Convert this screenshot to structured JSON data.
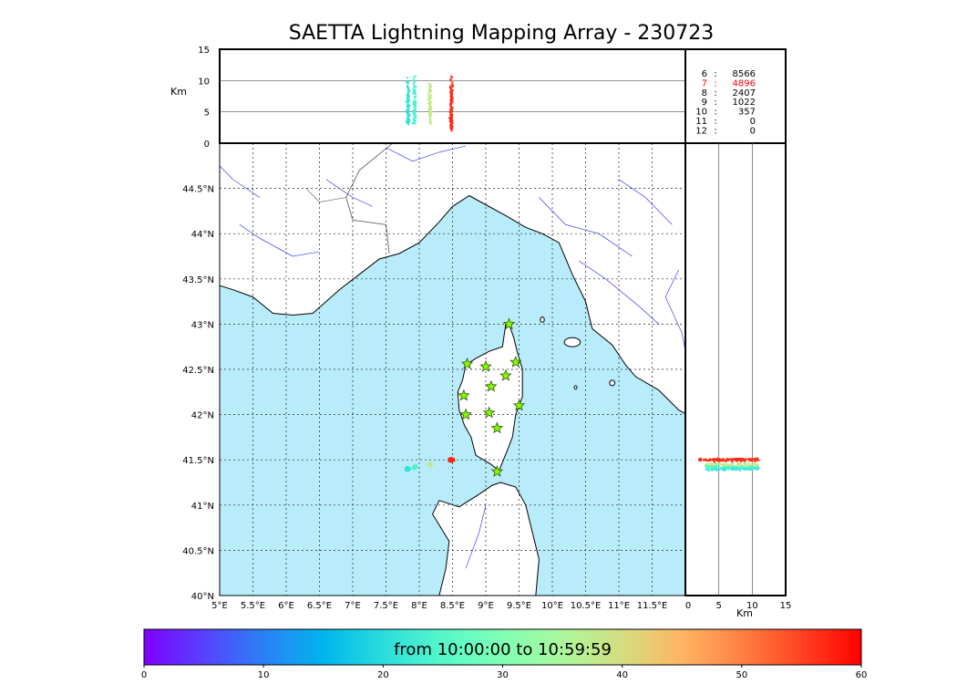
{
  "chart_data": {
    "type": "scatter",
    "title": "SAETTA Lightning Mapping Array - 230723",
    "height_panel": {
      "ylabel": "Km",
      "ylim": [
        0,
        15
      ],
      "yticks": [
        0,
        5,
        10,
        15
      ],
      "grid_lines": [
        5,
        10
      ]
    },
    "map": {
      "lon_range": [
        5,
        12
      ],
      "lat_range": [
        40,
        45
      ],
      "lon_ticks": [
        "5°E",
        "5.5°E",
        "6°E",
        "6.5°E",
        "7°E",
        "7.5°E",
        "8°E",
        "8.5°E",
        "9°E",
        "9.5°E",
        "10°E",
        "10.5°E",
        "11°E",
        "11.5°E"
      ],
      "lat_ticks": [
        "40°N",
        "40.5°N",
        "41°N",
        "41.5°N",
        "42°N",
        "42.5°N",
        "43°N",
        "43.5°N",
        "44°N",
        "44.5°N"
      ],
      "grid": "dotted"
    },
    "side_panel": {
      "xlabel": "Km",
      "xlim": [
        0,
        15
      ],
      "xticks": [
        0,
        5,
        10,
        15
      ],
      "grid_lines": [
        5,
        10
      ]
    },
    "counts_table": [
      {
        "label": "6",
        "sep": ":",
        "value": "8566",
        "color": "#000000"
      },
      {
        "label": "7",
        "sep": ":",
        "value": "4896",
        "color": "#ff0000"
      },
      {
        "label": "8",
        "sep": ":",
        "value": "2407",
        "color": "#000000"
      },
      {
        "label": "9",
        "sep": ":",
        "value": "1022",
        "color": "#000000"
      },
      {
        "label": "10",
        "sep": ":",
        "value": "357",
        "color": "#000000"
      },
      {
        "label": "11",
        "sep": ":",
        "value": "0",
        "color": "#000000"
      },
      {
        "label": "12",
        "sep": ":",
        "value": "0",
        "color": "#000000"
      }
    ],
    "stations": [
      {
        "lon": 9.35,
        "lat": 43.0
      },
      {
        "lon": 8.72,
        "lat": 42.56
      },
      {
        "lon": 9.0,
        "lat": 42.53
      },
      {
        "lon": 9.45,
        "lat": 42.58
      },
      {
        "lon": 9.3,
        "lat": 42.43
      },
      {
        "lon": 9.08,
        "lat": 42.31
      },
      {
        "lon": 8.67,
        "lat": 42.21
      },
      {
        "lon": 9.5,
        "lat": 42.1
      },
      {
        "lon": 8.7,
        "lat": 42.0
      },
      {
        "lon": 9.05,
        "lat": 42.02
      },
      {
        "lon": 9.17,
        "lat": 41.85
      },
      {
        "lon": 9.17,
        "lat": 41.37
      }
    ],
    "clusters": [
      {
        "minute": 21,
        "lon": 7.83,
        "lat": 41.4,
        "alt": [
          3,
          11
        ],
        "n": 35
      },
      {
        "minute": 24,
        "lon": 7.93,
        "lat": 41.42,
        "alt": [
          3,
          11
        ],
        "n": 30
      },
      {
        "minute": 38,
        "lon": 8.16,
        "lat": 41.45,
        "alt": [
          3,
          11
        ],
        "n": 28
      },
      {
        "minute": 57,
        "lon": 8.48,
        "lat": 41.5,
        "alt": [
          2,
          11
        ],
        "n": 45
      }
    ],
    "colorbar": {
      "label": "from 10:00:00 to 10:59:59",
      "range": [
        0,
        60
      ],
      "ticks": [
        0,
        10,
        20,
        30,
        40,
        50,
        60
      ],
      "colormap": "rainbow"
    }
  },
  "colors": {
    "sea": "#b8ecfb",
    "rivers": "#2020ff",
    "coast": "#000000",
    "borders": "#555555",
    "station_fill": "#80ff00",
    "station_edge": "#335500"
  }
}
